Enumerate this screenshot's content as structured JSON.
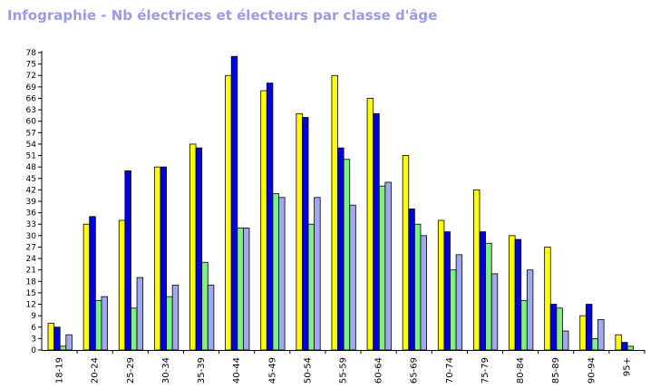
{
  "title": "Infographie - Nb électrices et électeurs par classe d'âge",
  "chart_data": {
    "type": "bar",
    "title": "Infographie - Nb électrices et électeurs par classe d'âge",
    "xlabel": "",
    "ylabel": "",
    "ylim": [
      0,
      78
    ],
    "yticks": [
      0,
      3,
      6,
      9,
      12,
      15,
      18,
      21,
      24,
      27,
      30,
      33,
      36,
      39,
      42,
      45,
      48,
      51,
      54,
      57,
      60,
      63,
      66,
      69,
      72,
      75,
      78
    ],
    "categories": [
      "18-19",
      "20-24",
      "25-29",
      "30-34",
      "35-39",
      "40-44",
      "45-49",
      "50-54",
      "55-59",
      "60-64",
      "65-69",
      "70-74",
      "75-79",
      "80-84",
      "85-89",
      "90-94",
      "95+"
    ],
    "series": [
      {
        "color": "#ffff00",
        "values": [
          7,
          33,
          34,
          48,
          54,
          72,
          68,
          62,
          72,
          66,
          51,
          34,
          42,
          30,
          27,
          9,
          4
        ]
      },
      {
        "color": "#0000e0",
        "values": [
          6,
          35,
          47,
          48,
          53,
          77,
          70,
          61,
          53,
          62,
          37,
          31,
          31,
          29,
          12,
          12,
          2
        ]
      },
      {
        "color": "#80f080",
        "values": [
          1,
          13,
          11,
          14,
          23,
          32,
          41,
          33,
          50,
          43,
          33,
          21,
          28,
          13,
          11,
          3,
          1
        ]
      },
      {
        "color": "#a0a8f0",
        "values": [
          4,
          14,
          19,
          17,
          17,
          32,
          40,
          40,
          38,
          44,
          30,
          25,
          20,
          21,
          5,
          8,
          0
        ]
      }
    ],
    "grid": false,
    "legend": "none"
  }
}
